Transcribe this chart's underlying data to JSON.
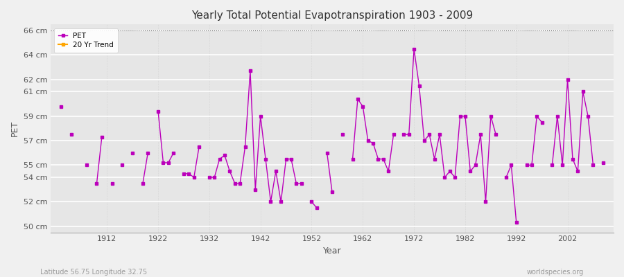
{
  "title": "Yearly Total Potential Evapotranspiration 1903 - 2009",
  "xlabel": "Year",
  "ylabel": "PET",
  "subtitle_left": "Latitude 56.75 Longitude 32.75",
  "subtitle_right": "worldspecies.org",
  "ylim": [
    49.5,
    66.5
  ],
  "yticks": [
    50,
    52,
    54,
    55,
    57,
    59,
    61,
    62,
    64,
    66
  ],
  "ytick_labels": [
    "50 cm",
    "52 cm",
    "54 cm",
    "55 cm",
    "57 cm",
    "59 cm",
    "61 cm",
    "62 cm",
    "64 cm",
    "66 cm"
  ],
  "xticks": [
    1912,
    1922,
    1932,
    1942,
    1952,
    1962,
    1972,
    1982,
    1992,
    2002
  ],
  "xlim": [
    1901,
    2011
  ],
  "pet_color": "#bb00bb",
  "trend_color": "#ffa500",
  "bg_color": "#f0f0f0",
  "plot_bg_color": "#e6e6e6",
  "legend_labels": [
    "PET",
    "20 Yr Trend"
  ],
  "years": [
    1903,
    1905,
    1908,
    1910,
    1911,
    1913,
    1915,
    1917,
    1919,
    1920,
    1922,
    1923,
    1924,
    1925,
    1927,
    1928,
    1929,
    1930,
    1932,
    1933,
    1934,
    1935,
    1936,
    1937,
    1938,
    1939,
    1940,
    1941,
    1942,
    1943,
    1944,
    1945,
    1946,
    1947,
    1948,
    1949,
    1950,
    1952,
    1953,
    1955,
    1956,
    1958,
    1960,
    1961,
    1962,
    1963,
    1964,
    1965,
    1966,
    1967,
    1968,
    1970,
    1971,
    1972,
    1973,
    1974,
    1975,
    1976,
    1977,
    1978,
    1979,
    1980,
    1981,
    1982,
    1983,
    1984,
    1985,
    1986,
    1987,
    1988,
    1990,
    1991,
    1992,
    1994,
    1995,
    1996,
    1997,
    1999,
    2000,
    2001,
    2002,
    2003,
    2004,
    2005,
    2006,
    2007,
    2009
  ],
  "pet_values": [
    59.8,
    57.5,
    55.0,
    53.5,
    57.3,
    53.5,
    55.0,
    56.0,
    53.5,
    56.0,
    59.4,
    55.2,
    55.2,
    56.0,
    54.3,
    54.3,
    54.0,
    56.5,
    54.0,
    54.0,
    55.5,
    55.8,
    54.5,
    53.5,
    53.5,
    56.5,
    62.7,
    53.0,
    59.0,
    55.5,
    52.0,
    54.5,
    52.0,
    55.5,
    55.5,
    53.5,
    53.5,
    52.0,
    51.5,
    56.0,
    52.8,
    57.5,
    55.5,
    60.4,
    59.8,
    57.0,
    56.8,
    55.5,
    55.5,
    54.5,
    57.5,
    57.5,
    57.5,
    64.5,
    61.5,
    57.0,
    57.5,
    55.5,
    57.5,
    54.0,
    54.5,
    54.0,
    59.0,
    59.0,
    54.5,
    55.0,
    57.5,
    52.0,
    59.0,
    57.5,
    54.0,
    55.0,
    50.3,
    55.0,
    55.0,
    59.0,
    58.5,
    55.0,
    59.0,
    55.0,
    62.0,
    55.5,
    54.5,
    61.0,
    59.0,
    55.0,
    55.2
  ],
  "trend_years": [],
  "trend_values": []
}
